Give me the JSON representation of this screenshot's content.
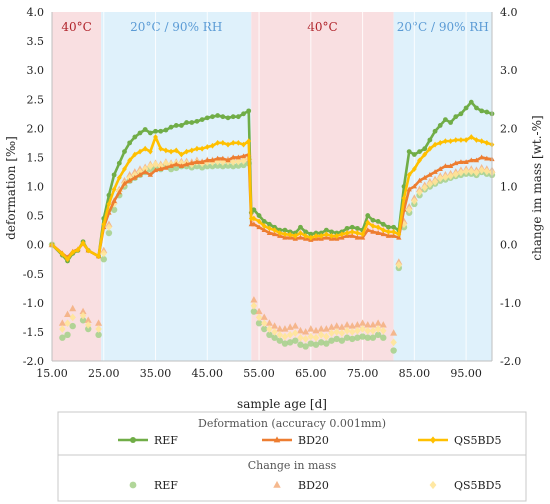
{
  "chart_data": {
    "type": "line",
    "xlabel": "sample age [d]",
    "ylabel_left": "deformation [‰]",
    "ylabel_right": "change im mass [wt.-%]",
    "xlim": [
      15,
      100
    ],
    "ylim_left": [
      -2.0,
      4.0
    ],
    "ylim_right": [
      -2.0,
      4.0
    ],
    "x_ticks": [
      "15.00",
      "25.00",
      "35.00",
      "45.00",
      "55.00",
      "65.00",
      "75.00",
      "85.00",
      "95.00"
    ],
    "y_ticks_left": [
      "-2.0",
      "-1.5",
      "-1.0",
      "-0.5",
      "0.0",
      "0.5",
      "1.0",
      "1.5",
      "2.0",
      "2.5",
      "3.0",
      "3.5",
      "4.0"
    ],
    "y_ticks_right": [
      "-2.0",
      "-1.0",
      "0.0",
      "1.0",
      "2.0",
      "3.0",
      "4.0"
    ],
    "bands": [
      {
        "label": "40°C",
        "x0": 15,
        "x1": 24.5,
        "color": "#f9dfe1",
        "label_color": "#b0232a"
      },
      {
        "label": "20°C / 90% RH",
        "x0": 24.5,
        "x1": 53.5,
        "color": "#dff1fb",
        "label_color": "#5b9bd5"
      },
      {
        "label": "40°C",
        "x0": 53.5,
        "x1": 81,
        "color": "#f9dfe1",
        "label_color": "#b0232a"
      },
      {
        "label": "20°C / 90% RH",
        "x0": 81,
        "x1": 100,
        "color": "#dff1fb",
        "label_color": "#5b9bd5"
      }
    ],
    "deformation_title": "Deformation (accuracy 0.001mm)",
    "mass_title": "Change in mass",
    "deformation_series": [
      {
        "name": "REF",
        "color": "#70ad47",
        "x": [
          15,
          17,
          18,
          19,
          20,
          21,
          22,
          24,
          25,
          26,
          27,
          28,
          29,
          30,
          31,
          32,
          33,
          34,
          35,
          36,
          37,
          38,
          39,
          40,
          41,
          42,
          43,
          44,
          45,
          46,
          47,
          48,
          49,
          50,
          51,
          52,
          53,
          53.5,
          54,
          55,
          56,
          57,
          58,
          59,
          60,
          61,
          62,
          63,
          64,
          65,
          66,
          67,
          68,
          69,
          70,
          71,
          72,
          73,
          74,
          75,
          76,
          77,
          78,
          79,
          80,
          81,
          82,
          83,
          84,
          85,
          86,
          87,
          88,
          89,
          90,
          91,
          92,
          93,
          94,
          95,
          96,
          97,
          98,
          99,
          100
        ],
        "y": [
          0,
          -0.18,
          -0.28,
          -0.15,
          -0.1,
          0.05,
          -0.1,
          -0.2,
          0.45,
          0.85,
          1.2,
          1.4,
          1.6,
          1.75,
          1.85,
          1.92,
          1.98,
          1.92,
          1.95,
          1.95,
          1.97,
          2.02,
          2.05,
          2.05,
          2.1,
          2.1,
          2.12,
          2.15,
          2.18,
          2.2,
          2.22,
          2.2,
          2.18,
          2.2,
          2.2,
          2.25,
          2.3,
          0.55,
          0.6,
          0.5,
          0.4,
          0.35,
          0.3,
          0.25,
          0.25,
          0.22,
          0.2,
          0.3,
          0.22,
          0.18,
          0.2,
          0.2,
          0.25,
          0.22,
          0.2,
          0.22,
          0.28,
          0.3,
          0.28,
          0.25,
          0.5,
          0.42,
          0.4,
          0.35,
          0.3,
          0.3,
          0.25,
          1.0,
          1.6,
          1.55,
          1.6,
          1.65,
          1.8,
          1.95,
          2.05,
          2.15,
          2.1,
          2.2,
          2.25,
          2.35,
          2.45,
          2.35,
          2.3,
          2.28,
          2.25
        ]
      },
      {
        "name": "BD20",
        "color": "#ed7d31",
        "x": [
          15,
          17,
          18,
          19,
          20,
          21,
          22,
          24,
          25,
          26,
          27,
          28,
          29,
          30,
          31,
          32,
          33,
          34,
          35,
          36,
          37,
          38,
          39,
          40,
          41,
          42,
          43,
          44,
          45,
          46,
          47,
          48,
          49,
          50,
          51,
          52,
          53,
          53.5,
          54,
          55,
          56,
          57,
          58,
          59,
          60,
          61,
          62,
          63,
          64,
          65,
          66,
          67,
          68,
          69,
          70,
          71,
          72,
          73,
          74,
          75,
          76,
          77,
          78,
          79,
          80,
          81,
          82,
          83,
          84,
          85,
          86,
          87,
          88,
          89,
          90,
          91,
          92,
          93,
          94,
          95,
          96,
          97,
          98,
          99,
          100
        ],
        "y": [
          0,
          -0.15,
          -0.22,
          -0.12,
          -0.08,
          0.02,
          -0.1,
          -0.2,
          0.3,
          0.55,
          0.75,
          0.9,
          1.05,
          1.1,
          1.15,
          1.2,
          1.25,
          1.2,
          1.28,
          1.3,
          1.32,
          1.35,
          1.38,
          1.35,
          1.38,
          1.4,
          1.42,
          1.42,
          1.45,
          1.45,
          1.48,
          1.48,
          1.45,
          1.5,
          1.5,
          1.52,
          1.55,
          0.35,
          0.35,
          0.3,
          0.25,
          0.2,
          0.18,
          0.15,
          0.12,
          0.12,
          0.1,
          0.12,
          0.1,
          0.08,
          0.1,
          0.1,
          0.12,
          0.1,
          0.1,
          0.12,
          0.15,
          0.15,
          0.12,
          0.12,
          0.25,
          0.22,
          0.2,
          0.18,
          0.15,
          0.15,
          0.12,
          0.6,
          0.95,
          1.0,
          1.1,
          1.15,
          1.2,
          1.25,
          1.3,
          1.35,
          1.35,
          1.4,
          1.42,
          1.42,
          1.45,
          1.45,
          1.5,
          1.48,
          1.47
        ]
      },
      {
        "name": "QS5BD5",
        "color": "#ffc000",
        "x": [
          15,
          17,
          18,
          19,
          20,
          21,
          22,
          24,
          25,
          26,
          27,
          28,
          29,
          30,
          31,
          32,
          33,
          34,
          35,
          36,
          37,
          38,
          39,
          40,
          41,
          42,
          43,
          44,
          45,
          46,
          47,
          48,
          49,
          50,
          51,
          52,
          53,
          53.5,
          54,
          55,
          56,
          57,
          58,
          59,
          60,
          61,
          62,
          63,
          64,
          65,
          66,
          67,
          68,
          69,
          70,
          71,
          72,
          73,
          74,
          75,
          76,
          77,
          78,
          79,
          80,
          81,
          82,
          83,
          84,
          85,
          86,
          87,
          88,
          89,
          90,
          91,
          92,
          93,
          94,
          95,
          96,
          97,
          98,
          99,
          100
        ],
        "y": [
          0,
          -0.16,
          -0.25,
          -0.13,
          -0.09,
          0.03,
          -0.1,
          -0.2,
          0.35,
          0.7,
          0.95,
          1.15,
          1.3,
          1.45,
          1.55,
          1.6,
          1.65,
          1.6,
          1.85,
          1.65,
          1.62,
          1.6,
          1.62,
          1.55,
          1.6,
          1.62,
          1.65,
          1.65,
          1.68,
          1.7,
          1.75,
          1.75,
          1.72,
          1.75,
          1.75,
          1.72,
          1.78,
          0.45,
          0.45,
          0.4,
          0.32,
          0.28,
          0.25,
          0.2,
          0.18,
          0.17,
          0.15,
          0.2,
          0.15,
          0.12,
          0.15,
          0.15,
          0.18,
          0.15,
          0.15,
          0.18,
          0.2,
          0.22,
          0.2,
          0.18,
          0.38,
          0.32,
          0.3,
          0.25,
          0.22,
          0.22,
          0.18,
          0.8,
          1.2,
          1.3,
          1.45,
          1.55,
          1.65,
          1.72,
          1.75,
          1.78,
          1.78,
          1.8,
          1.8,
          1.8,
          1.85,
          1.8,
          1.78,
          1.75,
          1.72
        ]
      }
    ],
    "mass_series": [
      {
        "name": "REF",
        "color": "#a9d18e",
        "x": [
          15,
          17,
          18,
          19,
          21,
          22,
          24,
          25,
          26,
          27,
          28,
          29,
          30,
          31,
          32,
          33,
          34,
          35,
          36,
          37,
          38,
          39,
          40,
          41,
          42,
          43,
          44,
          45,
          46,
          47,
          48,
          49,
          50,
          51,
          52,
          53,
          54,
          55,
          56,
          57,
          58,
          59,
          60,
          61,
          62,
          63,
          64,
          65,
          66,
          67,
          68,
          69,
          70,
          71,
          72,
          73,
          74,
          75,
          76,
          77,
          78,
          79,
          81,
          82,
          83,
          84,
          85,
          86,
          87,
          88,
          89,
          90,
          91,
          92,
          93,
          94,
          95,
          96,
          97,
          98,
          99,
          100
        ],
        "y": [
          0,
          -1.6,
          -1.55,
          -1.4,
          -1.3,
          -1.45,
          -1.55,
          -0.25,
          0.2,
          0.6,
          0.85,
          1.0,
          1.1,
          1.15,
          1.2,
          1.25,
          1.3,
          1.32,
          1.3,
          1.35,
          1.3,
          1.32,
          1.35,
          1.35,
          1.33,
          1.35,
          1.33,
          1.35,
          1.35,
          1.36,
          1.35,
          1.36,
          1.35,
          1.36,
          1.37,
          1.4,
          -1.15,
          -1.35,
          -1.45,
          -1.55,
          -1.6,
          -1.65,
          -1.7,
          -1.68,
          -1.65,
          -1.72,
          -1.75,
          -1.7,
          -1.72,
          -1.68,
          -1.7,
          -1.65,
          -1.62,
          -1.65,
          -1.6,
          -1.62,
          -1.6,
          -1.58,
          -1.6,
          -1.6,
          -1.55,
          -1.6,
          -1.82,
          -0.4,
          0.3,
          0.55,
          0.7,
          0.85,
          0.95,
          1.0,
          1.05,
          1.1,
          1.12,
          1.15,
          1.18,
          1.2,
          1.22,
          1.22,
          1.2,
          1.25,
          1.22,
          1.2
        ]
      },
      {
        "name": "BD20",
        "color": "#f4b183",
        "x": [
          15,
          17,
          18,
          19,
          21,
          22,
          24,
          25,
          26,
          27,
          28,
          29,
          30,
          31,
          32,
          33,
          34,
          35,
          36,
          37,
          38,
          39,
          40,
          41,
          42,
          43,
          44,
          45,
          46,
          47,
          48,
          49,
          50,
          51,
          52,
          53,
          54,
          55,
          56,
          57,
          58,
          59,
          60,
          61,
          62,
          63,
          64,
          65,
          66,
          67,
          68,
          69,
          70,
          71,
          72,
          73,
          74,
          75,
          76,
          77,
          78,
          79,
          81,
          82,
          83,
          84,
          85,
          86,
          87,
          88,
          89,
          90,
          91,
          92,
          93,
          94,
          95,
          96,
          97,
          98,
          99,
          100
        ],
        "y": [
          0,
          -1.35,
          -1.2,
          -1.1,
          -1.15,
          -1.3,
          -1.35,
          -0.1,
          0.35,
          0.75,
          0.95,
          1.1,
          1.2,
          1.25,
          1.3,
          1.33,
          1.38,
          1.4,
          1.38,
          1.42,
          1.4,
          1.42,
          1.43,
          1.43,
          1.42,
          1.45,
          1.42,
          1.45,
          1.45,
          1.46,
          1.45,
          1.46,
          1.45,
          1.46,
          1.47,
          1.5,
          -0.95,
          -1.15,
          -1.25,
          -1.35,
          -1.4,
          -1.45,
          -1.45,
          -1.42,
          -1.4,
          -1.48,
          -1.5,
          -1.45,
          -1.48,
          -1.45,
          -1.45,
          -1.42,
          -1.4,
          -1.42,
          -1.38,
          -1.4,
          -1.38,
          -1.35,
          -1.38,
          -1.38,
          -1.35,
          -1.38,
          -1.52,
          -0.3,
          0.4,
          0.65,
          0.8,
          0.95,
          1.02,
          1.08,
          1.12,
          1.18,
          1.2,
          1.22,
          1.25,
          1.28,
          1.3,
          1.3,
          1.28,
          1.32,
          1.3,
          1.28
        ]
      },
      {
        "name": "QS5BD5",
        "color": "#ffe699",
        "x": [
          15,
          17,
          18,
          19,
          21,
          22,
          24,
          25,
          26,
          27,
          28,
          29,
          30,
          31,
          32,
          33,
          34,
          35,
          36,
          37,
          38,
          39,
          40,
          41,
          42,
          43,
          44,
          45,
          46,
          47,
          48,
          49,
          50,
          51,
          52,
          53,
          54,
          55,
          56,
          57,
          58,
          59,
          60,
          61,
          62,
          63,
          64,
          65,
          66,
          67,
          68,
          69,
          70,
          71,
          72,
          73,
          74,
          75,
          76,
          77,
          78,
          79,
          81,
          82,
          83,
          84,
          85,
          86,
          87,
          88,
          89,
          90,
          91,
          92,
          93,
          94,
          95,
          96,
          97,
          98,
          99,
          100
        ],
        "y": [
          0,
          -1.45,
          -1.35,
          -1.25,
          -1.22,
          -1.38,
          -1.45,
          -0.15,
          0.3,
          0.7,
          0.92,
          1.05,
          1.15,
          1.2,
          1.25,
          1.3,
          1.35,
          1.38,
          1.35,
          1.4,
          1.38,
          1.4,
          1.4,
          1.4,
          1.38,
          1.42,
          1.4,
          1.42,
          1.42,
          1.43,
          1.42,
          1.43,
          1.42,
          1.43,
          1.44,
          1.48,
          -1.05,
          -1.25,
          -1.35,
          -1.45,
          -1.5,
          -1.55,
          -1.58,
          -1.55,
          -1.52,
          -1.6,
          -1.62,
          -1.58,
          -1.6,
          -1.55,
          -1.58,
          -1.52,
          -1.5,
          -1.52,
          -1.48,
          -1.5,
          -1.48,
          -1.45,
          -1.48,
          -1.48,
          -1.45,
          -1.48,
          -1.68,
          -0.35,
          0.35,
          0.6,
          0.75,
          0.9,
          0.98,
          1.04,
          1.08,
          1.14,
          1.16,
          1.18,
          1.21,
          1.24,
          1.26,
          1.26,
          1.24,
          1.28,
          1.26,
          1.24
        ]
      }
    ],
    "legend_placement": "bottom",
    "grid": {
      "vertical": true,
      "horizontal": false
    }
  }
}
